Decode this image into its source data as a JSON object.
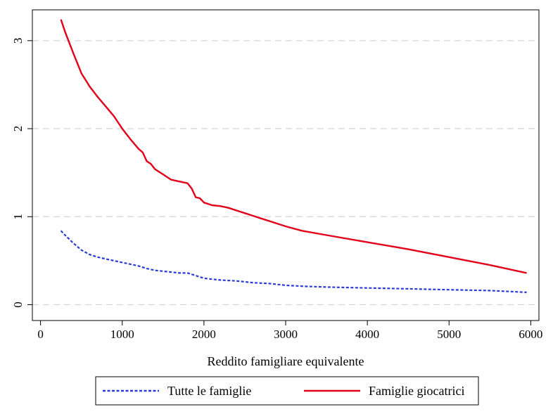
{
  "chart_data": {
    "type": "line",
    "title": "",
    "xlabel": "Reddito famigliare equivalente",
    "ylabel": "",
    "xlim": [
      -100,
      6100
    ],
    "ylim": [
      -0.18,
      3.35
    ],
    "x_ticks": [
      0,
      1000,
      2000,
      3000,
      4000,
      5000,
      6000
    ],
    "x_tick_labels": [
      "0",
      "1000",
      "2000",
      "3000",
      "4000",
      "5000",
      "6000"
    ],
    "y_ticks": [
      0,
      1,
      2,
      3
    ],
    "y_tick_labels": [
      "0",
      "1",
      "2",
      "3"
    ],
    "grid": "horizontal dashed",
    "legend_position": "bottom",
    "series": [
      {
        "name": "Tutte le famiglie",
        "color": "#2a3bd8",
        "style": "dashed",
        "x": [
          250,
          300,
          400,
          500,
          600,
          700,
          800,
          900,
          1000,
          1100,
          1200,
          1300,
          1400,
          1500,
          1600,
          1700,
          1800,
          1900,
          2000,
          2100,
          2200,
          2400,
          2600,
          2800,
          3000,
          3200,
          3500,
          4000,
          4500,
          5000,
          5500,
          5950
        ],
        "y": [
          0.84,
          0.79,
          0.7,
          0.62,
          0.57,
          0.54,
          0.52,
          0.5,
          0.48,
          0.46,
          0.44,
          0.41,
          0.39,
          0.38,
          0.37,
          0.36,
          0.36,
          0.33,
          0.3,
          0.29,
          0.28,
          0.27,
          0.25,
          0.24,
          0.22,
          0.21,
          0.2,
          0.19,
          0.18,
          0.17,
          0.16,
          0.14
        ]
      },
      {
        "name": "Famiglie giocatrici",
        "color": "#e3001b",
        "style": "solid",
        "x": [
          250,
          300,
          400,
          500,
          600,
          700,
          800,
          900,
          1000,
          1100,
          1200,
          1250,
          1300,
          1350,
          1400,
          1500,
          1600,
          1700,
          1800,
          1850,
          1900,
          1950,
          2000,
          2100,
          2200,
          2300,
          2400,
          2500,
          2600,
          2700,
          2800,
          3000,
          3200,
          3500,
          4000,
          4500,
          5000,
          5500,
          5950
        ],
        "y": [
          3.24,
          3.1,
          2.86,
          2.63,
          2.48,
          2.36,
          2.25,
          2.14,
          2.0,
          1.88,
          1.77,
          1.73,
          1.63,
          1.6,
          1.54,
          1.48,
          1.42,
          1.4,
          1.38,
          1.32,
          1.22,
          1.21,
          1.16,
          1.13,
          1.12,
          1.1,
          1.07,
          1.04,
          1.01,
          0.98,
          0.95,
          0.89,
          0.84,
          0.79,
          0.71,
          0.63,
          0.54,
          0.45,
          0.36
        ]
      }
    ]
  }
}
